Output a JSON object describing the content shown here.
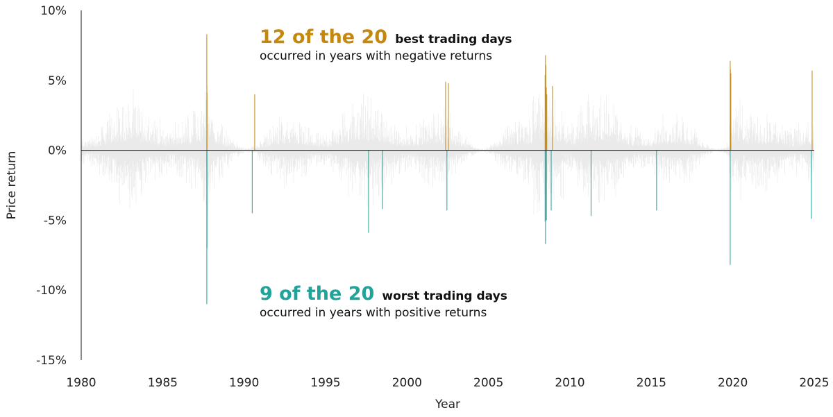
{
  "chart_data": {
    "type": "bar",
    "xlabel": "Year",
    "ylabel": "Price return",
    "xlim": [
      1980,
      2025
    ],
    "ylim": [
      -15,
      10
    ],
    "x_ticks": [
      "1980",
      "1985",
      "1990",
      "1995",
      "2000",
      "2005",
      "2010",
      "2015",
      "2020",
      "2025"
    ],
    "y_ticks": [
      {
        "v": 10,
        "label": "10%"
      },
      {
        "v": 5,
        "label": "5%"
      },
      {
        "v": 0,
        "label": "0%"
      },
      {
        "v": -5,
        "label": "-5%"
      },
      {
        "v": -10,
        "label": "-10%"
      },
      {
        "v": -15,
        "label": "-15%"
      }
    ],
    "grid": false,
    "colors": {
      "best": "#c4880f",
      "worst": "#1fa39a",
      "other_days": "#e6e6e6",
      "zero_line": "#333333"
    },
    "annotations": {
      "best": {
        "count": "12 of the 20",
        "label": "best trading days",
        "sub": "occurred in years with negative returns"
      },
      "worst": {
        "count": "9 of the 20",
        "label": "worst trading days",
        "sub": "occurred in years with positive returns"
      }
    },
    "series": [
      {
        "name": "best trading days",
        "points": [
          [
            1987.71,
            8.3
          ],
          [
            1987.72,
            4.1
          ],
          [
            1990.65,
            4.0
          ],
          [
            2002.37,
            4.9
          ],
          [
            2002.54,
            4.8
          ],
          [
            2008.5,
            6.8
          ],
          [
            2008.52,
            6.1
          ],
          [
            2008.48,
            5.4
          ],
          [
            2008.55,
            4.5
          ],
          [
            2008.58,
            4.0
          ],
          [
            2008.93,
            4.6
          ],
          [
            2019.84,
            6.4
          ],
          [
            2019.85,
            5.8
          ],
          [
            2019.88,
            5.5
          ],
          [
            2024.87,
            5.7
          ]
        ]
      },
      {
        "name": "worst trading days",
        "points": [
          [
            1987.71,
            -11.0
          ],
          [
            1987.72,
            -7.0
          ],
          [
            1990.5,
            -4.5
          ],
          [
            1997.64,
            -5.9
          ],
          [
            1998.5,
            -4.2
          ],
          [
            2002.45,
            -4.3
          ],
          [
            2008.5,
            -6.7
          ],
          [
            2008.48,
            -5.1
          ],
          [
            2008.56,
            -5.0
          ],
          [
            2008.85,
            -4.3
          ],
          [
            2011.3,
            -4.7
          ],
          [
            2015.32,
            -4.3
          ],
          [
            2019.84,
            -8.2
          ],
          [
            2024.82,
            -4.9
          ]
        ]
      }
    ]
  }
}
